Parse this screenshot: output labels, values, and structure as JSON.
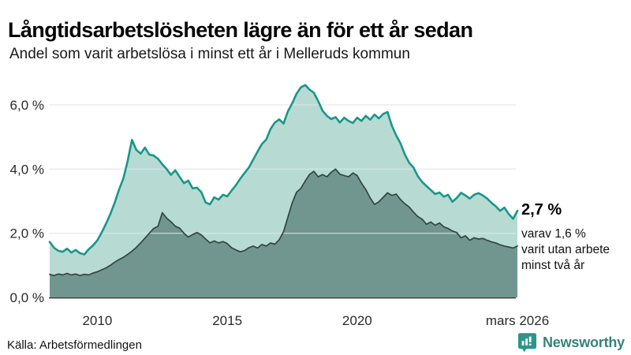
{
  "header": {
    "title": "Långtidsarbetslösheten lägre än för ett år sedan",
    "subtitle": "Andel som varit arbetslösa i minst ett år i Melleruds kommun"
  },
  "chart_data": {
    "type": "area",
    "title": "Långtidsarbetslösheten lägre än för ett år sedan",
    "subtitle": "Andel som varit arbetslösa i minst ett år i Melleruds kommun",
    "x_unit": "year",
    "x_start": 2008.1667,
    "x_step_years": 0.1666667,
    "xlim": [
      2008.1667,
      2026.1667
    ],
    "ylim": [
      0,
      6.7
    ],
    "grid": true,
    "gridline_values": [
      2,
      4,
      6
    ],
    "yticks": [
      {
        "label": "0,0 %",
        "value": 0
      },
      {
        "label": "2,0 %",
        "value": 2
      },
      {
        "label": "4,0 %",
        "value": 4
      },
      {
        "label": "6,0 %",
        "value": 6
      }
    ],
    "xticks": [
      {
        "label": "2010",
        "year": 2010
      },
      {
        "label": "2015",
        "year": 2015
      },
      {
        "label": "2020",
        "year": 2020
      },
      {
        "label": "mars 2026",
        "year": 2026.1667
      }
    ],
    "series": [
      {
        "name": "Andel som varit arbetslösa i minst ett år",
        "line_color": "#1a968a",
        "fill_color": "#b7dbd3",
        "line_width": 2.6,
        "last_value_label": "2,7 %",
        "values": [
          1.73,
          1.55,
          1.45,
          1.42,
          1.52,
          1.4,
          1.48,
          1.38,
          1.34,
          1.5,
          1.62,
          1.78,
          2.02,
          2.3,
          2.6,
          2.95,
          3.36,
          3.7,
          4.25,
          4.91,
          4.6,
          4.48,
          4.67,
          4.45,
          4.42,
          4.32,
          4.15,
          4.0,
          3.82,
          3.96,
          3.76,
          3.56,
          3.64,
          3.4,
          3.42,
          3.28,
          2.96,
          2.9,
          3.12,
          3.05,
          3.2,
          3.15,
          3.33,
          3.5,
          3.7,
          3.88,
          4.05,
          4.3,
          4.55,
          4.78,
          4.92,
          5.25,
          5.45,
          5.55,
          5.42,
          5.8,
          6.05,
          6.35,
          6.55,
          6.62,
          6.48,
          6.38,
          6.12,
          5.82,
          5.66,
          5.56,
          5.62,
          5.45,
          5.6,
          5.5,
          5.44,
          5.6,
          5.5,
          5.66,
          5.54,
          5.7,
          5.58,
          5.72,
          5.78,
          5.35,
          5.05,
          4.8,
          4.46,
          4.2,
          4.05,
          3.78,
          3.6,
          3.47,
          3.35,
          3.22,
          3.27,
          3.14,
          3.2,
          2.98,
          3.1,
          3.26,
          3.18,
          3.08,
          3.2,
          3.25,
          3.18,
          3.08,
          2.95,
          2.84,
          2.7,
          2.8,
          2.6,
          2.45,
          2.7
        ]
      },
      {
        "name": "varav utan arbete minst två år",
        "line_color": "#334440",
        "fill_color": "#71968f",
        "line_width": 1.7,
        "last_value_label": "1,6 %",
        "values": [
          0.72,
          0.68,
          0.73,
          0.7,
          0.75,
          0.7,
          0.73,
          0.68,
          0.72,
          0.7,
          0.76,
          0.8,
          0.86,
          0.92,
          1.0,
          1.1,
          1.18,
          1.25,
          1.34,
          1.44,
          1.56,
          1.7,
          1.85,
          2.0,
          2.15,
          2.22,
          2.64,
          2.47,
          2.36,
          2.22,
          2.16,
          2.0,
          1.88,
          1.96,
          2.02,
          1.95,
          1.82,
          1.7,
          1.76,
          1.7,
          1.74,
          1.68,
          1.55,
          1.48,
          1.42,
          1.46,
          1.55,
          1.6,
          1.54,
          1.65,
          1.6,
          1.7,
          1.66,
          1.8,
          2.05,
          2.5,
          2.95,
          3.28,
          3.4,
          3.63,
          3.83,
          3.93,
          3.76,
          3.83,
          3.76,
          3.9,
          4.0,
          3.84,
          3.8,
          3.76,
          3.88,
          3.8,
          3.56,
          3.36,
          3.1,
          2.9,
          2.98,
          3.12,
          3.26,
          3.18,
          3.22,
          3.05,
          2.92,
          2.82,
          2.66,
          2.52,
          2.44,
          2.28,
          2.35,
          2.25,
          2.32,
          2.2,
          2.15,
          2.07,
          2.02,
          1.86,
          1.92,
          1.78,
          1.86,
          1.82,
          1.84,
          1.78,
          1.73,
          1.7,
          1.64,
          1.6,
          1.57,
          1.54,
          1.6
        ]
      }
    ],
    "annotation": {
      "value_label": "2,7 %",
      "lines": [
        "varav 1,6 %",
        "varit utan arbete",
        "minst två år"
      ]
    }
  },
  "colors": {
    "gridline": "#e2e3ea",
    "axis_line": "#3a3a3a",
    "tick_text": "#2a2a2a",
    "brand_teal": "#2f948a",
    "brand_text_teal": "#35837b"
  },
  "footer": {
    "source": "Källa: Arbetsförmedlingen",
    "brand": "Newsworthy"
  }
}
